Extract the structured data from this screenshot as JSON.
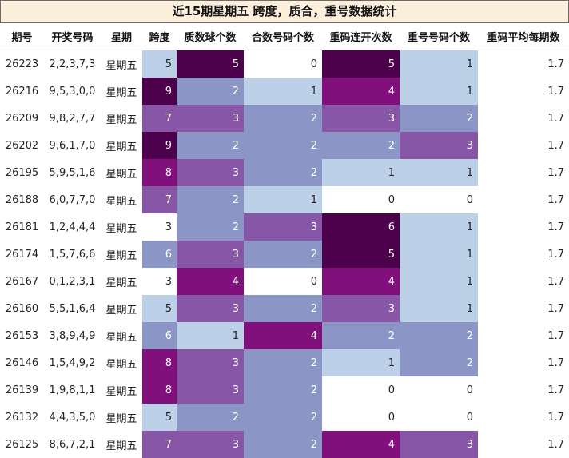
{
  "title": "近15期星期五 跨度，质合，重号数据统计",
  "headers": [
    "期号",
    "开奖号码",
    "星期",
    "跨度",
    "质数球个数",
    "合数号码个数",
    "重码连开次数",
    "重号号码个数",
    "重码平均每期数"
  ],
  "colors": {
    "title_bg": "#fbefdc",
    "scale": {
      "0": "#ffffff",
      "1": "#bcd0e7",
      "2": "#8c96c6",
      "3": "#8856a7",
      "4": "#810f7c",
      "5": "#4d004b"
    }
  },
  "rows": [
    {
      "issue": "26223",
      "numbers": "2,2,3,7,3",
      "weekday": "星期五",
      "span": "5",
      "prime": "5",
      "composite": "0",
      "repeat_streak": "5",
      "repeat_count": "1",
      "avg": "1.7"
    },
    {
      "issue": "26216",
      "numbers": "9,5,3,0,0",
      "weekday": "星期五",
      "span": "9",
      "prime": "2",
      "composite": "1",
      "repeat_streak": "4",
      "repeat_count": "1",
      "avg": "1.7"
    },
    {
      "issue": "26209",
      "numbers": "9,8,2,7,7",
      "weekday": "星期五",
      "span": "7",
      "prime": "3",
      "composite": "2",
      "repeat_streak": "3",
      "repeat_count": "2",
      "avg": "1.7"
    },
    {
      "issue": "26202",
      "numbers": "9,6,1,7,0",
      "weekday": "星期五",
      "span": "9",
      "prime": "2",
      "composite": "2",
      "repeat_streak": "2",
      "repeat_count": "3",
      "avg": "1.7"
    },
    {
      "issue": "26195",
      "numbers": "5,9,5,1,6",
      "weekday": "星期五",
      "span": "8",
      "prime": "3",
      "composite": "2",
      "repeat_streak": "1",
      "repeat_count": "1",
      "avg": "1.7"
    },
    {
      "issue": "26188",
      "numbers": "6,0,7,7,0",
      "weekday": "星期五",
      "span": "7",
      "prime": "2",
      "composite": "1",
      "repeat_streak": "0",
      "repeat_count": "0",
      "avg": "1.7"
    },
    {
      "issue": "26181",
      "numbers": "1,2,4,4,4",
      "weekday": "星期五",
      "span": "3",
      "prime": "2",
      "composite": "3",
      "repeat_streak": "6",
      "repeat_count": "1",
      "avg": "1.7"
    },
    {
      "issue": "26174",
      "numbers": "1,5,7,6,6",
      "weekday": "星期五",
      "span": "6",
      "prime": "3",
      "composite": "2",
      "repeat_streak": "5",
      "repeat_count": "1",
      "avg": "1.7"
    },
    {
      "issue": "26167",
      "numbers": "0,1,2,3,1",
      "weekday": "星期五",
      "span": "3",
      "prime": "4",
      "composite": "0",
      "repeat_streak": "4",
      "repeat_count": "1",
      "avg": "1.7"
    },
    {
      "issue": "26160",
      "numbers": "5,5,1,6,4",
      "weekday": "星期五",
      "span": "5",
      "prime": "3",
      "composite": "2",
      "repeat_streak": "3",
      "repeat_count": "1",
      "avg": "1.7"
    },
    {
      "issue": "26153",
      "numbers": "3,8,9,4,9",
      "weekday": "星期五",
      "span": "6",
      "prime": "1",
      "composite": "4",
      "repeat_streak": "2",
      "repeat_count": "2",
      "avg": "1.7"
    },
    {
      "issue": "26146",
      "numbers": "1,5,4,9,2",
      "weekday": "星期五",
      "span": "8",
      "prime": "3",
      "composite": "2",
      "repeat_streak": "1",
      "repeat_count": "2",
      "avg": "1.7"
    },
    {
      "issue": "26139",
      "numbers": "1,9,8,1,1",
      "weekday": "星期五",
      "span": "8",
      "prime": "3",
      "composite": "2",
      "repeat_streak": "0",
      "repeat_count": "0",
      "avg": "1.7"
    },
    {
      "issue": "26132",
      "numbers": "4,4,3,5,0",
      "weekday": "星期五",
      "span": "5",
      "prime": "2",
      "composite": "2",
      "repeat_streak": "0",
      "repeat_count": "0",
      "avg": "1.7"
    },
    {
      "issue": "26125",
      "numbers": "8,6,7,2,1",
      "weekday": "星期五",
      "span": "7",
      "prime": "3",
      "composite": "2",
      "repeat_streak": "4",
      "repeat_count": "3",
      "avg": "1.7"
    }
  ]
}
